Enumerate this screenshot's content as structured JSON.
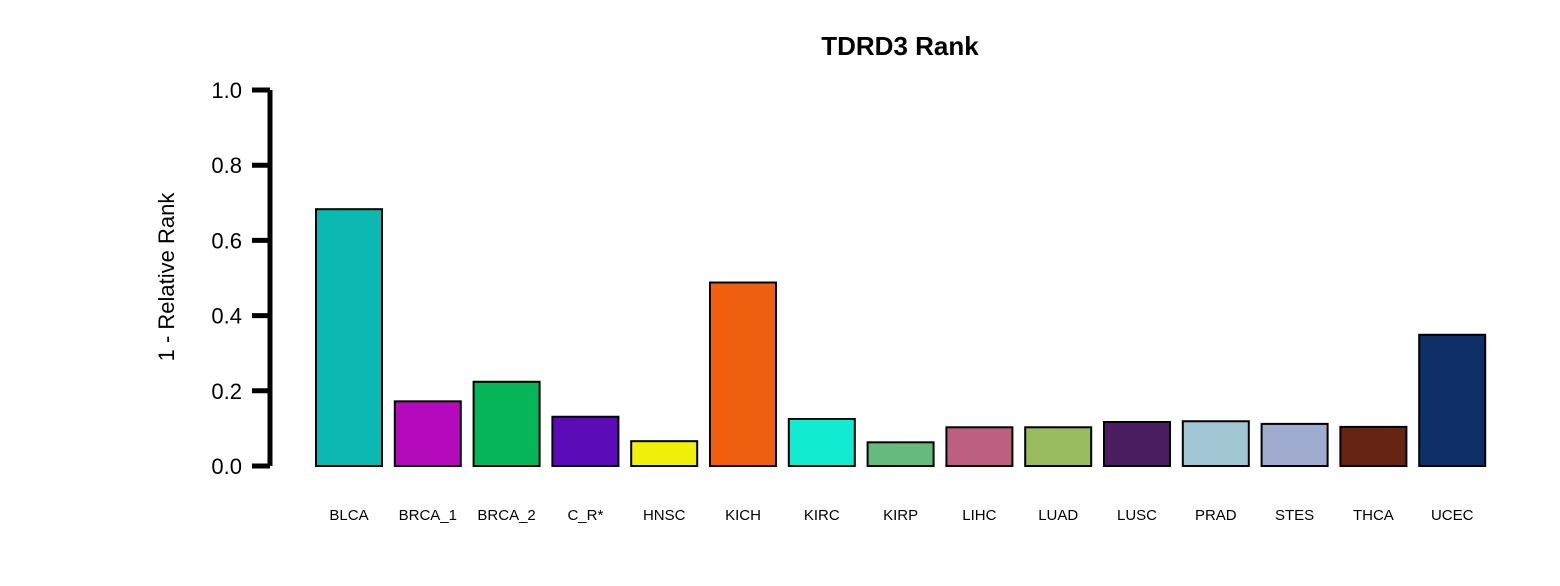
{
  "chart_data": {
    "type": "bar",
    "title": "TDRD3 Rank",
    "xlabel": "",
    "ylabel": "1 - Relative Rank",
    "ylim": [
      0,
      1
    ],
    "yticks": [
      "0.0",
      "0.2",
      "0.4",
      "0.6",
      "0.8",
      "1.0"
    ],
    "grid": false,
    "legend": "none",
    "categories": [
      "BLCA",
      "BRCA_1",
      "BRCA_2",
      "C_R*",
      "HNSC",
      "KICH",
      "KIRC",
      "KIRP",
      "LIHC",
      "LUAD",
      "LUSC",
      "PRAD",
      "STES",
      "THCA",
      "UCEC"
    ],
    "values": [
      0.683,
      0.172,
      0.224,
      0.131,
      0.066,
      0.488,
      0.125,
      0.063,
      0.103,
      0.103,
      0.117,
      0.119,
      0.112,
      0.104,
      0.349
    ],
    "colors": [
      "#0BB8B2",
      "#B40ABB",
      "#08B65A",
      "#5C0BB8",
      "#F0F00A",
      "#F06010",
      "#10EBD2",
      "#64BB7D",
      "#BC5F80",
      "#98BC5F",
      "#4A1C60",
      "#A0C6D3",
      "#9FACCF",
      "#682412",
      "#0E2F68"
    ]
  }
}
